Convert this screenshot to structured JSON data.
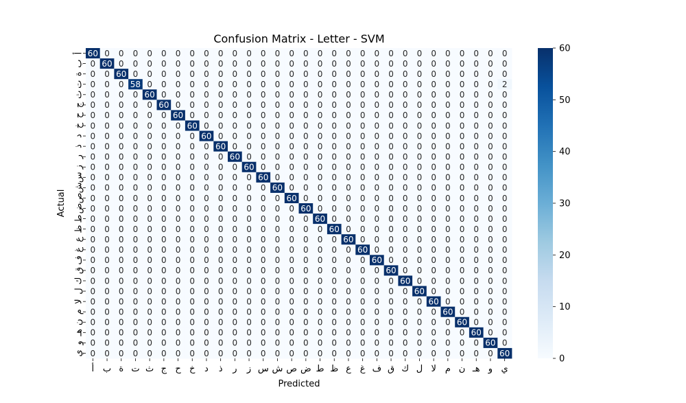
{
  "chart_data": {
    "type": "heatmap",
    "title": "Confusion Matrix - Letter - SVM",
    "xlabel": "Predicted",
    "ylabel": "Actual",
    "labels": [
      "أ",
      "ب",
      "ة",
      "ت",
      "ث",
      "ج",
      "ح",
      "خ",
      "د",
      "ذ",
      "ر",
      "ز",
      "س",
      "ش",
      "ص",
      "ض",
      "ط",
      "ظ",
      "ع",
      "غ",
      "ف",
      "ق",
      "ك",
      "ل",
      "لا",
      "م",
      "ن",
      "هـ",
      "و",
      "ي"
    ],
    "diagonal": [
      60,
      60,
      60,
      58,
      60,
      60,
      60,
      60,
      60,
      60,
      60,
      60,
      60,
      60,
      60,
      60,
      60,
      60,
      60,
      60,
      60,
      60,
      60,
      60,
      60,
      60,
      60,
      60,
      60,
      60
    ],
    "off_diagonal": [
      {
        "row": 3,
        "col": 29,
        "value": 2
      }
    ],
    "colorbar": {
      "range": [
        0,
        60
      ],
      "ticks": [
        "0",
        "10",
        "20",
        "30",
        "40",
        "50",
        "60"
      ],
      "colormap": "Blues"
    },
    "colors": {
      "low": "#f7fbff",
      "high": "#08306b"
    }
  }
}
